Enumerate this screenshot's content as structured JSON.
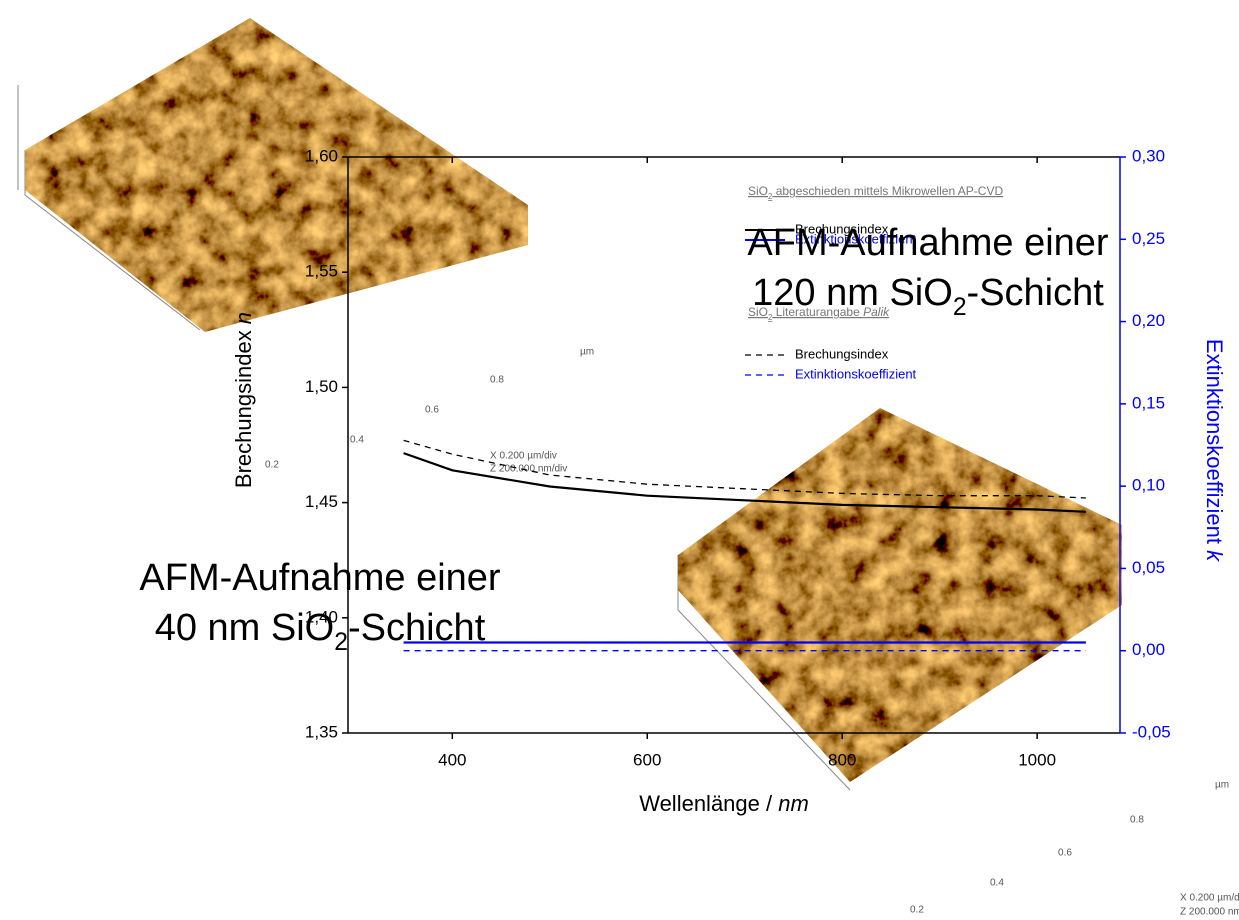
{
  "chart_data": {
    "type": "line",
    "x": [
      350,
      400,
      500,
      600,
      700,
      800,
      900,
      1000,
      1050
    ],
    "series": [
      {
        "name": "Brechungsindex",
        "color": "#000000",
        "dash": "solid",
        "axis": "y",
        "group": 0,
        "values": [
          1.4715,
          1.464,
          1.457,
          1.453,
          1.451,
          1.449,
          1.448,
          1.447,
          1.446
        ]
      },
      {
        "name": "Extinktionskoeffizient",
        "color": "#0000ff",
        "dash": "solid",
        "axis": "y2",
        "group": 0,
        "values": [
          0.005,
          0.005,
          0.005,
          0.005,
          0.005,
          0.005,
          0.005,
          0.005,
          0.005
        ]
      },
      {
        "name": "Brechungsindex",
        "color": "#000000",
        "dash": "dashed",
        "axis": "y",
        "group": 1,
        "values": [
          1.477,
          1.471,
          1.462,
          1.458,
          1.456,
          1.454,
          1.453,
          1.453,
          1.452
        ]
      },
      {
        "name": "Extinktionskoeffizient",
        "color": "#0000ff",
        "dash": "dashed",
        "axis": "y2",
        "group": 1,
        "values": [
          0,
          0,
          0,
          0,
          0,
          0,
          0,
          0,
          0
        ]
      }
    ],
    "legend_groups": [
      {
        "title": [
          {
            "text": "SiO"
          },
          {
            "text": "2",
            "sub": true
          },
          {
            "text": " abgeschieden mittels Mikrowellen AP-CVD"
          }
        ]
      },
      {
        "title": [
          {
            "text": "SiO"
          },
          {
            "text": "2",
            "sub": true
          },
          {
            "text": " Literaturangabe "
          },
          {
            "text": "Palik",
            "italic": true
          }
        ]
      }
    ],
    "xlabel": [
      {
        "text": "Wellenlänge / "
      },
      {
        "text": "nm",
        "italic": true
      }
    ],
    "ylabel": [
      {
        "text": "Brechungsindex "
      },
      {
        "text": "n",
        "italic": true
      }
    ],
    "y2label": [
      {
        "text": "Extinktionskoeffizient "
      },
      {
        "text": "k",
        "italic": true
      }
    ],
    "xlim": [
      293,
      1085
    ],
    "xticks": [
      400,
      600,
      800,
      1000
    ],
    "ylim": [
      1.35,
      1.6
    ],
    "yticks": [
      {
        "value": 1.35,
        "label": "1,35"
      },
      {
        "value": 1.4,
        "label": "1,40"
      },
      {
        "value": 1.45,
        "label": "1,45"
      },
      {
        "value": 1.5,
        "label": "1,50"
      },
      {
        "value": 1.55,
        "label": "1,55"
      },
      {
        "value": 1.6,
        "label": "1,60"
      }
    ],
    "y2lim": [
      -0.05,
      0.3
    ],
    "y2ticks": [
      {
        "value": -0.05,
        "label": "-0,05"
      },
      {
        "value": 0,
        "label": "0,00"
      },
      {
        "value": 0.05,
        "label": "0,05"
      },
      {
        "value": 0.1,
        "label": "0,10"
      },
      {
        "value": 0.15,
        "label": "0,15"
      },
      {
        "value": 0.2,
        "label": "0,20"
      },
      {
        "value": 0.25,
        "label": "0,25"
      },
      {
        "value": 0.3,
        "label": "0,30"
      }
    ],
    "y2color": "#0000ff"
  },
  "captions": [
    {
      "lines": [
        [
          {
            "text": "AFM-Aufnahme einer"
          }
        ],
        [
          {
            "text": "120 nm SiO"
          },
          {
            "text": "2",
            "sub": true
          },
          {
            "text": "-Schicht"
          }
        ]
      ]
    },
    {
      "lines": [
        [
          {
            "text": "AFM-Aufnahme einer"
          }
        ],
        [
          {
            "text": "40 nm SiO"
          },
          {
            "text": "2",
            "sub": true
          },
          {
            "text": "-Schicht"
          }
        ]
      ]
    }
  ],
  "afm_images": [
    {
      "labels": [
        "µm",
        "0.8",
        "0.6",
        "0.4",
        "0.2",
        "X  0.200 µm/div",
        "Z  200.000 nm/div"
      ]
    },
    {
      "labels": [
        "µm",
        "0.8",
        "0.6",
        "0.4",
        "0.2",
        "X  0.200 µm/d",
        "Z  200.000 nm"
      ]
    }
  ]
}
